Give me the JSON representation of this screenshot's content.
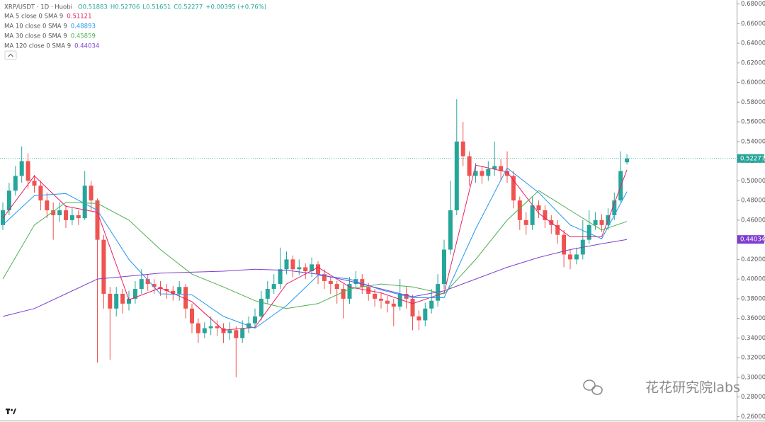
{
  "chart_data": {
    "type": "candlestick",
    "title": "XRP/USDT · 1D · Huobi",
    "ohlc_header": [
      "O0.51883",
      "H0.52706",
      "L0.51651",
      "C0.52277",
      "+0.00395 (+0.76%)"
    ],
    "up_color": "#26a69a",
    "down_color": "#ef5350",
    "ylim": [
      0.256,
      0.684
    ],
    "yticks": [
      {
        "value": 0.26,
        "label": "0.26000"
      },
      {
        "value": 0.28,
        "label": "0.28000"
      },
      {
        "value": 0.3,
        "label": "0.30000"
      },
      {
        "value": 0.32,
        "label": "0.32000"
      },
      {
        "value": 0.34,
        "label": "0.34000"
      },
      {
        "value": 0.36,
        "label": "0.36000"
      },
      {
        "value": 0.38,
        "label": "0.38000"
      },
      {
        "value": 0.4,
        "label": "0.40000"
      },
      {
        "value": 0.42,
        "label": "0.42000"
      },
      {
        "value": 0.44,
        "label": "0.44000"
      },
      {
        "value": 0.46,
        "label": "0.46000"
      },
      {
        "value": 0.48,
        "label": "0.48000"
      },
      {
        "value": 0.5,
        "label": "0.50000"
      },
      {
        "value": 0.52,
        "label": "0.52000"
      },
      {
        "value": 0.54,
        "label": "0.54000"
      },
      {
        "value": 0.56,
        "label": "0.56000"
      },
      {
        "value": 0.58,
        "label": "0.58000"
      },
      {
        "value": 0.6,
        "label": "0.60000"
      },
      {
        "value": 0.62,
        "label": "0.62000"
      },
      {
        "value": 0.64,
        "label": "0.64000"
      },
      {
        "value": 0.66,
        "label": "0.66000"
      },
      {
        "value": 0.68,
        "label": "0.68000"
      }
    ],
    "grid": false,
    "open": [
      0.455,
      0.47,
      0.49,
      0.505,
      0.52,
      0.5,
      0.495,
      0.48,
      0.47,
      0.465,
      0.47,
      0.46,
      0.465,
      0.462,
      0.495,
      0.48,
      0.44,
      0.385,
      0.37,
      0.385,
      0.375,
      0.38,
      0.39,
      0.4,
      0.395,
      0.392,
      0.39,
      0.388,
      0.385,
      0.392,
      0.37,
      0.355,
      0.345,
      0.35,
      0.352,
      0.35,
      0.345,
      0.348,
      0.34,
      0.35,
      0.355,
      0.362,
      0.38,
      0.39,
      0.395,
      0.41,
      0.42,
      0.41,
      0.412,
      0.408,
      0.415,
      0.405,
      0.398,
      0.395,
      0.39,
      0.38,
      0.395,
      0.4,
      0.392,
      0.385,
      0.38,
      0.378,
      0.375,
      0.372,
      0.385,
      0.38,
      0.362,
      0.358,
      0.37,
      0.378,
      0.395,
      0.43,
      0.47,
      0.54,
      0.525,
      0.505,
      0.51,
      0.505,
      0.512,
      0.515,
      0.51,
      0.505,
      0.48,
      0.46,
      0.455,
      0.475,
      0.47,
      0.46,
      0.455,
      0.445,
      0.425,
      0.42,
      0.425,
      0.44,
      0.455,
      0.46,
      0.455,
      0.465,
      0.48,
      0.51883
    ],
    "high": [
      0.478,
      0.498,
      0.515,
      0.535,
      0.528,
      0.506,
      0.5,
      0.488,
      0.478,
      0.478,
      0.475,
      0.472,
      0.47,
      0.51,
      0.5,
      0.482,
      0.445,
      0.392,
      0.392,
      0.39,
      0.388,
      0.398,
      0.41,
      0.405,
      0.4,
      0.398,
      0.395,
      0.393,
      0.398,
      0.395,
      0.375,
      0.36,
      0.356,
      0.362,
      0.358,
      0.355,
      0.356,
      0.352,
      0.358,
      0.362,
      0.37,
      0.388,
      0.398,
      0.405,
      0.432,
      0.428,
      0.424,
      0.42,
      0.416,
      0.422,
      0.418,
      0.41,
      0.402,
      0.398,
      0.395,
      0.402,
      0.408,
      0.405,
      0.396,
      0.39,
      0.386,
      0.383,
      0.38,
      0.4,
      0.392,
      0.384,
      0.368,
      0.376,
      0.39,
      0.405,
      0.44,
      0.5,
      0.583,
      0.56,
      0.53,
      0.518,
      0.515,
      0.52,
      0.54,
      0.522,
      0.53,
      0.51,
      0.484,
      0.468,
      0.484,
      0.48,
      0.475,
      0.465,
      0.46,
      0.45,
      0.43,
      0.432,
      0.46,
      0.47,
      0.468,
      0.466,
      0.472,
      0.488,
      0.53,
      0.52706
    ],
    "low": [
      0.45,
      0.465,
      0.485,
      0.498,
      0.492,
      0.488,
      0.47,
      0.462,
      0.44,
      0.458,
      0.452,
      0.455,
      0.455,
      0.46,
      0.47,
      0.315,
      0.37,
      0.318,
      0.362,
      0.365,
      0.368,
      0.375,
      0.385,
      0.388,
      0.385,
      0.383,
      0.38,
      0.378,
      0.378,
      0.36,
      0.345,
      0.335,
      0.34,
      0.343,
      0.342,
      0.335,
      0.338,
      0.3,
      0.335,
      0.345,
      0.35,
      0.358,
      0.375,
      0.385,
      0.39,
      0.405,
      0.402,
      0.404,
      0.4,
      0.402,
      0.395,
      0.39,
      0.385,
      0.375,
      0.36,
      0.375,
      0.39,
      0.385,
      0.378,
      0.372,
      0.37,
      0.366,
      0.352,
      0.368,
      0.37,
      0.348,
      0.348,
      0.352,
      0.365,
      0.372,
      0.39,
      0.425,
      0.465,
      0.515,
      0.495,
      0.498,
      0.497,
      0.5,
      0.505,
      0.5,
      0.498,
      0.472,
      0.45,
      0.445,
      0.45,
      0.462,
      0.452,
      0.446,
      0.436,
      0.412,
      0.41,
      0.415,
      0.42,
      0.436,
      0.45,
      0.448,
      0.45,
      0.46,
      0.478,
      0.51651
    ],
    "close": [
      0.47,
      0.49,
      0.505,
      0.52,
      0.5,
      0.495,
      0.48,
      0.47,
      0.465,
      0.47,
      0.46,
      0.465,
      0.462,
      0.495,
      0.48,
      0.44,
      0.385,
      0.37,
      0.385,
      0.375,
      0.38,
      0.39,
      0.4,
      0.395,
      0.392,
      0.39,
      0.388,
      0.385,
      0.392,
      0.37,
      0.355,
      0.345,
      0.35,
      0.352,
      0.35,
      0.345,
      0.348,
      0.34,
      0.35,
      0.355,
      0.362,
      0.38,
      0.39,
      0.395,
      0.41,
      0.42,
      0.41,
      0.412,
      0.408,
      0.415,
      0.405,
      0.398,
      0.395,
      0.39,
      0.38,
      0.395,
      0.4,
      0.392,
      0.385,
      0.38,
      0.378,
      0.375,
      0.372,
      0.385,
      0.38,
      0.362,
      0.358,
      0.37,
      0.378,
      0.395,
      0.43,
      0.47,
      0.54,
      0.525,
      0.505,
      0.51,
      0.505,
      0.512,
      0.515,
      0.51,
      0.505,
      0.48,
      0.46,
      0.455,
      0.475,
      0.47,
      0.46,
      0.455,
      0.445,
      0.425,
      0.42,
      0.425,
      0.44,
      0.455,
      0.46,
      0.455,
      0.465,
      0.48,
      0.51,
      0.52277
    ],
    "series": [
      {
        "name": "MA 5 close 0 SMA 9",
        "color": "#e91e63",
        "x": [
          0,
          5,
          10,
          15,
          20,
          25,
          30,
          35,
          40,
          45,
          50,
          55,
          60,
          65,
          70,
          75,
          80,
          85,
          90,
          95,
          99
        ],
        "values": [
          0.462,
          0.505,
          0.474,
          0.468,
          0.379,
          0.391,
          0.377,
          0.348,
          0.351,
          0.395,
          0.412,
          0.392,
          0.386,
          0.375,
          0.386,
          0.516,
          0.509,
          0.467,
          0.443,
          0.443,
          0.51121
        ]
      },
      {
        "name": "MA 10 close 0 SMA 9",
        "color": "#2196f3",
        "x": [
          0,
          5,
          10,
          15,
          20,
          25,
          30,
          35,
          40,
          45,
          50,
          55,
          60,
          65,
          70,
          75,
          80,
          85,
          90,
          95,
          99
        ],
        "values": [
          0.455,
          0.485,
          0.487,
          0.47,
          0.42,
          0.385,
          0.384,
          0.362,
          0.35,
          0.373,
          0.404,
          0.4,
          0.389,
          0.381,
          0.381,
          0.451,
          0.513,
          0.488,
          0.455,
          0.441,
          0.48893
        ]
      },
      {
        "name": "MA 30 close 0 SMA 9",
        "color": "#4caf50",
        "x": [
          0,
          5,
          10,
          15,
          20,
          25,
          30,
          35,
          40,
          45,
          50,
          55,
          60,
          65,
          70,
          75,
          80,
          85,
          90,
          95,
          99
        ],
        "values": [
          0.4,
          0.455,
          0.478,
          0.477,
          0.46,
          0.43,
          0.405,
          0.392,
          0.378,
          0.37,
          0.375,
          0.39,
          0.395,
          0.392,
          0.385,
          0.42,
          0.46,
          0.49,
          0.47,
          0.45,
          0.45859
        ]
      },
      {
        "name": "MA 120 close 0 SMA 9",
        "color": "#7e3fd0",
        "x": [
          0,
          5,
          10,
          15,
          20,
          25,
          30,
          35,
          40,
          45,
          50,
          55,
          60,
          65,
          70,
          75,
          80,
          85,
          90,
          95,
          99
        ],
        "values": [
          0.362,
          0.37,
          0.385,
          0.4,
          0.403,
          0.406,
          0.407,
          0.408,
          0.41,
          0.409,
          0.405,
          0.398,
          0.39,
          0.382,
          0.388,
          0.4,
          0.412,
          0.422,
          0.43,
          0.436,
          0.44034
        ]
      }
    ],
    "watermark": "花花研究院labs"
  }
}
